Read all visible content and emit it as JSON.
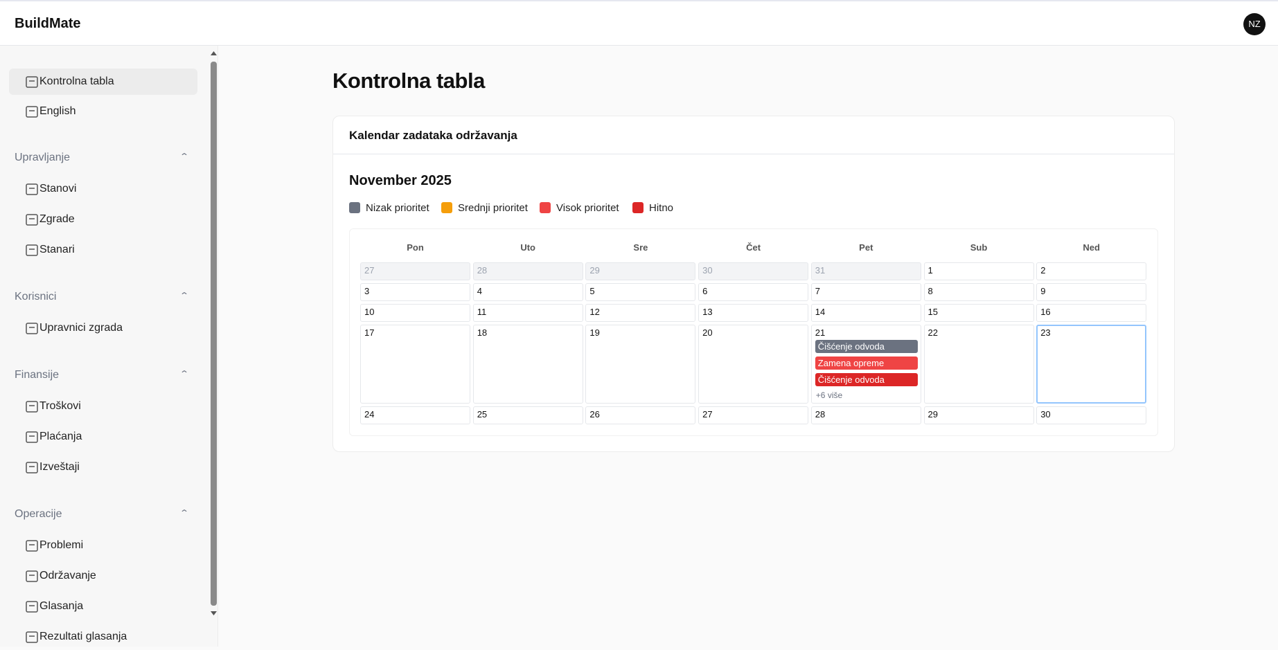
{
  "header": {
    "brand": "BuildMate",
    "avatar": "NZ"
  },
  "sidebar": {
    "top": [
      "Kontrolna tabla",
      "English"
    ],
    "groups": [
      {
        "title": "Upravljanje",
        "items": [
          "Stanovi",
          "Zgrade",
          "Stanari"
        ]
      },
      {
        "title": "Korisnici",
        "items": [
          "Upravnici zgrada"
        ]
      },
      {
        "title": "Finansije",
        "items": [
          "Troškovi",
          "Plaćanja",
          "Izveštaji"
        ]
      },
      {
        "title": "Operacije",
        "items": [
          "Problemi",
          "Održavanje",
          "Glasanja",
          "Rezultati glasanja"
        ]
      }
    ]
  },
  "page_title": "Kontrolna tabla",
  "card": {
    "title": "Kalendar zadataka održavanja",
    "month": "November 2025",
    "legend": [
      {
        "label": "Nizak prioritet",
        "color": "#6b7280"
      },
      {
        "label": "Srednji prioritet",
        "color": "#f59e0b"
      },
      {
        "label": "Visok prioritet",
        "color": "#ef4444"
      },
      {
        "label": "Hitno",
        "color": "#dc2626"
      }
    ],
    "weekdays": [
      "Pon",
      "Uto",
      "Sre",
      "Čet",
      "Pet",
      "Sub",
      "Ned"
    ],
    "weeks": [
      [
        27,
        28,
        29,
        30,
        31,
        1,
        2
      ],
      [
        3,
        4,
        5,
        6,
        7,
        8,
        9
      ],
      [
        10,
        11,
        12,
        13,
        14,
        15,
        16
      ],
      [
        17,
        18,
        19,
        20,
        21,
        22,
        23
      ],
      [
        24,
        25,
        26,
        27,
        28,
        29,
        30
      ]
    ],
    "today": 23,
    "event_day": {
      "day": 21,
      "events": [
        {
          "label": "Čišćenje odvoda",
          "color": "#6b7280"
        },
        {
          "label": "Zamena opreme",
          "color": "#ef4444"
        },
        {
          "label": "Čišćenje odvoda",
          "color": "#dc2626"
        }
      ],
      "more": "+6 više"
    }
  }
}
